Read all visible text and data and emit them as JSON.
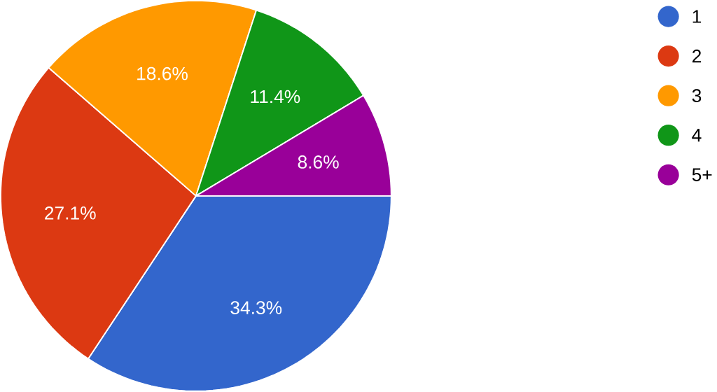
{
  "chart_data": {
    "type": "pie",
    "categories": [
      "1",
      "2",
      "3",
      "4",
      "5+"
    ],
    "values": [
      34.3,
      27.1,
      18.6,
      11.4,
      8.6
    ],
    "colors": [
      "#3366cc",
      "#dc3912",
      "#ff9900",
      "#109618",
      "#990099"
    ],
    "value_labels": [
      "34.3%",
      "27.1%",
      "18.6%",
      "11.4%",
      "8.6%"
    ],
    "legend": "right"
  }
}
